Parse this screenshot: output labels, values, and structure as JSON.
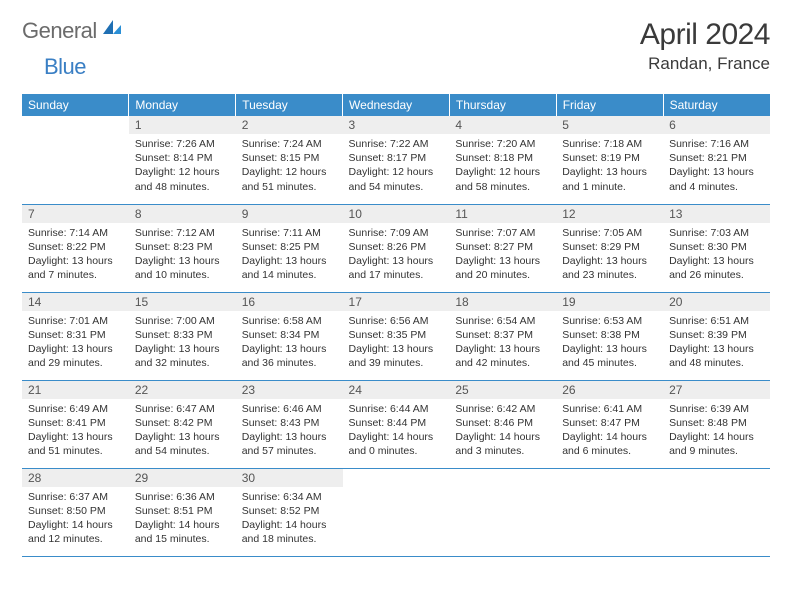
{
  "logo": {
    "part1": "General",
    "part2": "Blue"
  },
  "title": "April 2024",
  "location": "Randan, France",
  "colors": {
    "accent": "#3a8cc9",
    "header_text": "#ffffff",
    "daynum_bg": "#eeeeee",
    "border": "#3a8cc9",
    "logo_gray": "#6b6b6b",
    "logo_blue": "#3a7fc4"
  },
  "weekday_headers": [
    "Sunday",
    "Monday",
    "Tuesday",
    "Wednesday",
    "Thursday",
    "Friday",
    "Saturday"
  ],
  "weeks": [
    [
      null,
      {
        "day": "1",
        "sunrise": "Sunrise: 7:26 AM",
        "sunset": "Sunset: 8:14 PM",
        "daylight1": "Daylight: 12 hours",
        "daylight2": "and 48 minutes."
      },
      {
        "day": "2",
        "sunrise": "Sunrise: 7:24 AM",
        "sunset": "Sunset: 8:15 PM",
        "daylight1": "Daylight: 12 hours",
        "daylight2": "and 51 minutes."
      },
      {
        "day": "3",
        "sunrise": "Sunrise: 7:22 AM",
        "sunset": "Sunset: 8:17 PM",
        "daylight1": "Daylight: 12 hours",
        "daylight2": "and 54 minutes."
      },
      {
        "day": "4",
        "sunrise": "Sunrise: 7:20 AM",
        "sunset": "Sunset: 8:18 PM",
        "daylight1": "Daylight: 12 hours",
        "daylight2": "and 58 minutes."
      },
      {
        "day": "5",
        "sunrise": "Sunrise: 7:18 AM",
        "sunset": "Sunset: 8:19 PM",
        "daylight1": "Daylight: 13 hours",
        "daylight2": "and 1 minute."
      },
      {
        "day": "6",
        "sunrise": "Sunrise: 7:16 AM",
        "sunset": "Sunset: 8:21 PM",
        "daylight1": "Daylight: 13 hours",
        "daylight2": "and 4 minutes."
      }
    ],
    [
      {
        "day": "7",
        "sunrise": "Sunrise: 7:14 AM",
        "sunset": "Sunset: 8:22 PM",
        "daylight1": "Daylight: 13 hours",
        "daylight2": "and 7 minutes."
      },
      {
        "day": "8",
        "sunrise": "Sunrise: 7:12 AM",
        "sunset": "Sunset: 8:23 PM",
        "daylight1": "Daylight: 13 hours",
        "daylight2": "and 10 minutes."
      },
      {
        "day": "9",
        "sunrise": "Sunrise: 7:11 AM",
        "sunset": "Sunset: 8:25 PM",
        "daylight1": "Daylight: 13 hours",
        "daylight2": "and 14 minutes."
      },
      {
        "day": "10",
        "sunrise": "Sunrise: 7:09 AM",
        "sunset": "Sunset: 8:26 PM",
        "daylight1": "Daylight: 13 hours",
        "daylight2": "and 17 minutes."
      },
      {
        "day": "11",
        "sunrise": "Sunrise: 7:07 AM",
        "sunset": "Sunset: 8:27 PM",
        "daylight1": "Daylight: 13 hours",
        "daylight2": "and 20 minutes."
      },
      {
        "day": "12",
        "sunrise": "Sunrise: 7:05 AM",
        "sunset": "Sunset: 8:29 PM",
        "daylight1": "Daylight: 13 hours",
        "daylight2": "and 23 minutes."
      },
      {
        "day": "13",
        "sunrise": "Sunrise: 7:03 AM",
        "sunset": "Sunset: 8:30 PM",
        "daylight1": "Daylight: 13 hours",
        "daylight2": "and 26 minutes."
      }
    ],
    [
      {
        "day": "14",
        "sunrise": "Sunrise: 7:01 AM",
        "sunset": "Sunset: 8:31 PM",
        "daylight1": "Daylight: 13 hours",
        "daylight2": "and 29 minutes."
      },
      {
        "day": "15",
        "sunrise": "Sunrise: 7:00 AM",
        "sunset": "Sunset: 8:33 PM",
        "daylight1": "Daylight: 13 hours",
        "daylight2": "and 32 minutes."
      },
      {
        "day": "16",
        "sunrise": "Sunrise: 6:58 AM",
        "sunset": "Sunset: 8:34 PM",
        "daylight1": "Daylight: 13 hours",
        "daylight2": "and 36 minutes."
      },
      {
        "day": "17",
        "sunrise": "Sunrise: 6:56 AM",
        "sunset": "Sunset: 8:35 PM",
        "daylight1": "Daylight: 13 hours",
        "daylight2": "and 39 minutes."
      },
      {
        "day": "18",
        "sunrise": "Sunrise: 6:54 AM",
        "sunset": "Sunset: 8:37 PM",
        "daylight1": "Daylight: 13 hours",
        "daylight2": "and 42 minutes."
      },
      {
        "day": "19",
        "sunrise": "Sunrise: 6:53 AM",
        "sunset": "Sunset: 8:38 PM",
        "daylight1": "Daylight: 13 hours",
        "daylight2": "and 45 minutes."
      },
      {
        "day": "20",
        "sunrise": "Sunrise: 6:51 AM",
        "sunset": "Sunset: 8:39 PM",
        "daylight1": "Daylight: 13 hours",
        "daylight2": "and 48 minutes."
      }
    ],
    [
      {
        "day": "21",
        "sunrise": "Sunrise: 6:49 AM",
        "sunset": "Sunset: 8:41 PM",
        "daylight1": "Daylight: 13 hours",
        "daylight2": "and 51 minutes."
      },
      {
        "day": "22",
        "sunrise": "Sunrise: 6:47 AM",
        "sunset": "Sunset: 8:42 PM",
        "daylight1": "Daylight: 13 hours",
        "daylight2": "and 54 minutes."
      },
      {
        "day": "23",
        "sunrise": "Sunrise: 6:46 AM",
        "sunset": "Sunset: 8:43 PM",
        "daylight1": "Daylight: 13 hours",
        "daylight2": "and 57 minutes."
      },
      {
        "day": "24",
        "sunrise": "Sunrise: 6:44 AM",
        "sunset": "Sunset: 8:44 PM",
        "daylight1": "Daylight: 14 hours",
        "daylight2": "and 0 minutes."
      },
      {
        "day": "25",
        "sunrise": "Sunrise: 6:42 AM",
        "sunset": "Sunset: 8:46 PM",
        "daylight1": "Daylight: 14 hours",
        "daylight2": "and 3 minutes."
      },
      {
        "day": "26",
        "sunrise": "Sunrise: 6:41 AM",
        "sunset": "Sunset: 8:47 PM",
        "daylight1": "Daylight: 14 hours",
        "daylight2": "and 6 minutes."
      },
      {
        "day": "27",
        "sunrise": "Sunrise: 6:39 AM",
        "sunset": "Sunset: 8:48 PM",
        "daylight1": "Daylight: 14 hours",
        "daylight2": "and 9 minutes."
      }
    ],
    [
      {
        "day": "28",
        "sunrise": "Sunrise: 6:37 AM",
        "sunset": "Sunset: 8:50 PM",
        "daylight1": "Daylight: 14 hours",
        "daylight2": "and 12 minutes."
      },
      {
        "day": "29",
        "sunrise": "Sunrise: 6:36 AM",
        "sunset": "Sunset: 8:51 PM",
        "daylight1": "Daylight: 14 hours",
        "daylight2": "and 15 minutes."
      },
      {
        "day": "30",
        "sunrise": "Sunrise: 6:34 AM",
        "sunset": "Sunset: 8:52 PM",
        "daylight1": "Daylight: 14 hours",
        "daylight2": "and 18 minutes."
      },
      null,
      null,
      null,
      null
    ]
  ]
}
